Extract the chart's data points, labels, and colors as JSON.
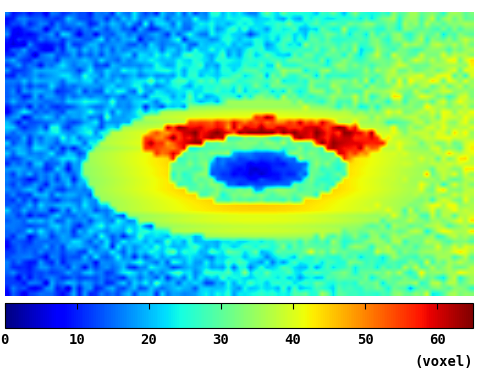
{
  "title": "",
  "colormap": "jet",
  "vmin": 0,
  "vmax": 65,
  "colorbar_ticks": [
    0,
    10,
    20,
    30,
    40,
    50,
    60
  ],
  "colorbar_label": "(voxel)",
  "image_shape": [
    55,
    85
  ],
  "background_color": "#ffffff",
  "figsize": [
    4.78,
    3.84
  ],
  "dpi": 100
}
